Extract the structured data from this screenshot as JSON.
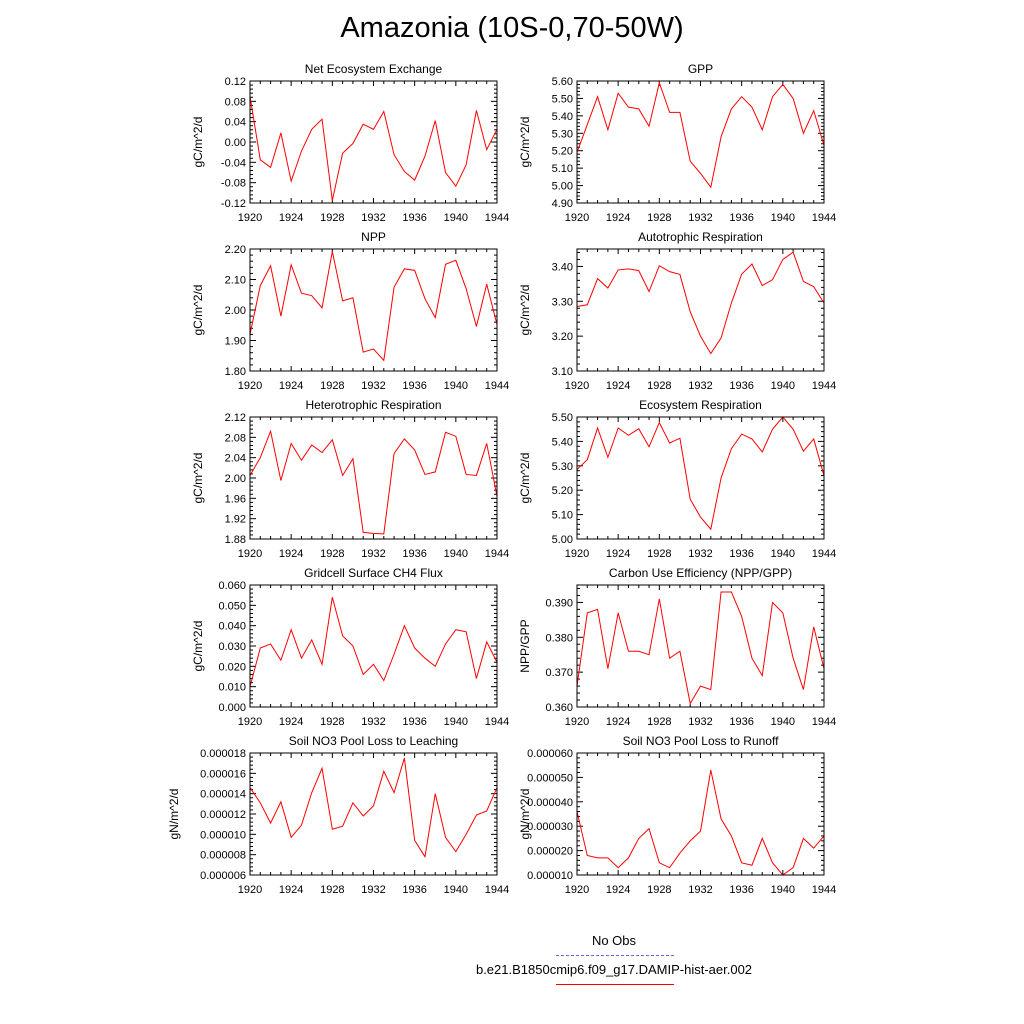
{
  "figure": {
    "title": "Amazonia (10S-0,70-50W)",
    "legend": [
      {
        "label": "No Obs",
        "color": "#6666ff",
        "style": "dashed"
      },
      {
        "label": "b.e21.B1850cmip6.f09_g17.DAMIP-hist-aer.002",
        "color": "#ff0000",
        "style": "solid"
      }
    ],
    "series_color": "#ff0000"
  },
  "chart_data": [
    {
      "type": "line",
      "title": "Net Ecosystem Exchange",
      "ylabel": "gC/m^2/d",
      "xlim": [
        1920,
        1944
      ],
      "ylim": [
        -0.12,
        0.12
      ],
      "xticks": [
        "1920",
        "1924",
        "1928",
        "1932",
        "1936",
        "1940",
        "1944"
      ],
      "yticks": [
        "-0.12",
        "-0.08",
        "-0.04",
        "0.00",
        "0.04",
        "0.08",
        "0.12"
      ],
      "series": [
        {
          "x": [
            1920,
            1921,
            1922,
            1923,
            1924,
            1925,
            1926,
            1927,
            1928,
            1929,
            1930,
            1931,
            1932,
            1933,
            1934,
            1935,
            1936,
            1937,
            1938,
            1939,
            1940,
            1941,
            1942,
            1943,
            1944
          ],
          "values": [
            0.09,
            -0.035,
            -0.05,
            0.018,
            -0.077,
            -0.018,
            0.025,
            0.045,
            -0.115,
            -0.022,
            -0.003,
            0.035,
            0.025,
            0.06,
            -0.025,
            -0.058,
            -0.075,
            -0.028,
            0.042,
            -0.06,
            -0.087,
            -0.045,
            0.062,
            -0.015,
            0.025
          ]
        }
      ]
    },
    {
      "type": "line",
      "title": "GPP",
      "ylabel": "gC/m^2/d",
      "xlim": [
        1920,
        1944
      ],
      "ylim": [
        4.9,
        5.6
      ],
      "xticks": [
        "1920",
        "1924",
        "1928",
        "1932",
        "1936",
        "1940",
        "1944"
      ],
      "yticks": [
        "4.90",
        "5.00",
        "5.10",
        "5.20",
        "5.30",
        "5.40",
        "5.50",
        "5.60"
      ],
      "series": [
        {
          "x": [
            1920,
            1921,
            1922,
            1923,
            1924,
            1925,
            1926,
            1927,
            1928,
            1929,
            1930,
            1931,
            1932,
            1933,
            1934,
            1935,
            1936,
            1937,
            1938,
            1939,
            1940,
            1941,
            1942,
            1943,
            1944
          ],
          "values": [
            5.19,
            5.35,
            5.51,
            5.32,
            5.53,
            5.45,
            5.44,
            5.34,
            5.59,
            5.42,
            5.42,
            5.14,
            5.07,
            4.99,
            5.28,
            5.44,
            5.51,
            5.45,
            5.32,
            5.51,
            5.58,
            5.5,
            5.3,
            5.43,
            5.23
          ]
        }
      ]
    },
    {
      "type": "line",
      "title": "NPP",
      "ylabel": "gC/m^2/d",
      "xlim": [
        1920,
        1944
      ],
      "ylim": [
        1.8,
        2.2
      ],
      "xticks": [
        "1920",
        "1924",
        "1928",
        "1932",
        "1936",
        "1940",
        "1944"
      ],
      "yticks": [
        "1.80",
        "1.90",
        "2.00",
        "2.10",
        "2.20"
      ],
      "series": [
        {
          "x": [
            1920,
            1921,
            1922,
            1923,
            1924,
            1925,
            1926,
            1927,
            1928,
            1929,
            1930,
            1931,
            1932,
            1933,
            1934,
            1935,
            1936,
            1937,
            1938,
            1939,
            1940,
            1941,
            1942,
            1943,
            1944
          ],
          "values": [
            1.92,
            2.08,
            2.145,
            1.98,
            2.148,
            2.055,
            2.047,
            2.007,
            2.192,
            2.03,
            2.04,
            1.862,
            1.872,
            1.835,
            2.075,
            2.135,
            2.13,
            2.037,
            1.975,
            2.15,
            2.163,
            2.07,
            1.946,
            2.085,
            1.952
          ]
        }
      ]
    },
    {
      "type": "line",
      "title": "Autotrophic Respiration",
      "ylabel": "gC/m^2/d",
      "xlim": [
        1920,
        1944
      ],
      "ylim": [
        3.1,
        3.45
      ],
      "xticks": [
        "1920",
        "1924",
        "1928",
        "1932",
        "1936",
        "1940",
        "1944"
      ],
      "yticks": [
        "3.10",
        "3.20",
        "3.30",
        "3.40"
      ],
      "series": [
        {
          "x": [
            1920,
            1921,
            1922,
            1923,
            1924,
            1925,
            1926,
            1927,
            1928,
            1929,
            1930,
            1931,
            1932,
            1933,
            1934,
            1935,
            1936,
            1937,
            1938,
            1939,
            1940,
            1941,
            1942,
            1943,
            1944
          ],
          "values": [
            3.285,
            3.29,
            3.365,
            3.338,
            3.39,
            3.393,
            3.388,
            3.328,
            3.402,
            3.385,
            3.377,
            3.27,
            3.2,
            3.15,
            3.195,
            3.295,
            3.378,
            3.407,
            3.345,
            3.362,
            3.42,
            3.441,
            3.357,
            3.342,
            3.295
          ]
        }
      ]
    },
    {
      "type": "line",
      "title": "Heterotrophic Respiration",
      "ylabel": "gC/m^2/d",
      "xlim": [
        1920,
        1944
      ],
      "ylim": [
        1.88,
        2.12
      ],
      "xticks": [
        "1920",
        "1924",
        "1928",
        "1932",
        "1936",
        "1940",
        "1944"
      ],
      "yticks": [
        "1.88",
        "1.92",
        "1.96",
        "2.00",
        "2.04",
        "2.08",
        "2.12"
      ],
      "series": [
        {
          "x": [
            1920,
            1921,
            1922,
            1923,
            1924,
            1925,
            1926,
            1927,
            1928,
            1929,
            1930,
            1931,
            1932,
            1933,
            1934,
            1935,
            1936,
            1937,
            1938,
            1939,
            1940,
            1941,
            1942,
            1943,
            1944
          ],
          "values": [
            2.005,
            2.04,
            2.092,
            1.995,
            2.068,
            2.035,
            2.065,
            2.05,
            2.075,
            2.005,
            2.038,
            1.893,
            1.891,
            1.89,
            2.048,
            2.077,
            2.055,
            2.007,
            2.012,
            2.09,
            2.082,
            2.007,
            2.005,
            2.068,
            1.964
          ]
        }
      ]
    },
    {
      "type": "line",
      "title": "Ecosystem Respiration",
      "ylabel": "gC/m^2/d",
      "xlim": [
        1920,
        1944
      ],
      "ylim": [
        5.0,
        5.5
      ],
      "xticks": [
        "1920",
        "1924",
        "1928",
        "1932",
        "1936",
        "1940",
        "1944"
      ],
      "yticks": [
        "5.00",
        "5.10",
        "5.20",
        "5.30",
        "5.40",
        "5.50"
      ],
      "series": [
        {
          "x": [
            1920,
            1921,
            1922,
            1923,
            1924,
            1925,
            1926,
            1927,
            1928,
            1929,
            1930,
            1931,
            1932,
            1933,
            1934,
            1935,
            1936,
            1937,
            1938,
            1939,
            1940,
            1941,
            1942,
            1943,
            1944
          ],
          "values": [
            5.285,
            5.325,
            5.455,
            5.335,
            5.455,
            5.425,
            5.452,
            5.378,
            5.477,
            5.393,
            5.413,
            5.163,
            5.09,
            5.04,
            5.25,
            5.37,
            5.43,
            5.41,
            5.357,
            5.45,
            5.5,
            5.45,
            5.36,
            5.41,
            5.26
          ]
        }
      ]
    },
    {
      "type": "line",
      "title": "Gridcell Surface CH4 Flux",
      "ylabel": "gC/m^2/d",
      "xlim": [
        1920,
        1944
      ],
      "ylim": [
        0.0,
        0.06
      ],
      "xticks": [
        "1920",
        "1924",
        "1928",
        "1932",
        "1936",
        "1940",
        "1944"
      ],
      "yticks": [
        "0.000",
        "0.010",
        "0.020",
        "0.030",
        "0.040",
        "0.050",
        "0.060"
      ],
      "series": [
        {
          "x": [
            1920,
            1921,
            1922,
            1923,
            1924,
            1925,
            1926,
            1927,
            1928,
            1929,
            1930,
            1931,
            1932,
            1933,
            1934,
            1935,
            1936,
            1937,
            1938,
            1939,
            1940,
            1941,
            1942,
            1943,
            1944
          ],
          "values": [
            0.01,
            0.029,
            0.031,
            0.023,
            0.038,
            0.024,
            0.033,
            0.021,
            0.054,
            0.035,
            0.03,
            0.016,
            0.021,
            0.013,
            0.026,
            0.04,
            0.029,
            0.024,
            0.02,
            0.031,
            0.038,
            0.037,
            0.014,
            0.032,
            0.022
          ]
        }
      ]
    },
    {
      "type": "line",
      "title": "Carbon Use Efficiency (NPP/GPP)",
      "ylabel": "NPP/GPP",
      "xlim": [
        1920,
        1944
      ],
      "ylim": [
        0.36,
        0.395
      ],
      "xticks": [
        "1920",
        "1924",
        "1928",
        "1932",
        "1936",
        "1940",
        "1944"
      ],
      "yticks": [
        "0.360",
        "0.370",
        "0.380",
        "0.390"
      ],
      "series": [
        {
          "x": [
            1920,
            1921,
            1922,
            1923,
            1924,
            1925,
            1926,
            1927,
            1928,
            1929,
            1930,
            1931,
            1932,
            1933,
            1934,
            1935,
            1936,
            1937,
            1938,
            1939,
            1940,
            1941,
            1942,
            1943,
            1944
          ],
          "values": [
            0.366,
            0.387,
            0.388,
            0.371,
            0.387,
            0.376,
            0.376,
            0.375,
            0.391,
            0.374,
            0.376,
            0.361,
            0.366,
            0.365,
            0.393,
            0.393,
            0.386,
            0.374,
            0.369,
            0.39,
            0.387,
            0.374,
            0.365,
            0.383,
            0.371
          ]
        }
      ]
    },
    {
      "type": "line",
      "title": "Soil NO3 Pool Loss to Leaching",
      "ylabel": "gN/m^2/d",
      "xlim": [
        1920,
        1944
      ],
      "ylim": [
        6e-06,
        1.8e-05
      ],
      "xticks": [
        "1920",
        "1924",
        "1928",
        "1932",
        "1936",
        "1940",
        "1944"
      ],
      "yticks": [
        "0.000006",
        "0.000008",
        "0.000010",
        "0.000012",
        "0.000014",
        "0.000016",
        "0.000018"
      ],
      "series": [
        {
          "x": [
            1920,
            1921,
            1922,
            1923,
            1924,
            1925,
            1926,
            1927,
            1928,
            1929,
            1930,
            1931,
            1932,
            1933,
            1934,
            1935,
            1936,
            1937,
            1938,
            1939,
            1940,
            1941,
            1942,
            1943,
            1944
          ],
          "values": [
            1.46e-05,
            1.31e-05,
            1.11e-05,
            1.32e-05,
            9.7e-06,
            1.09e-05,
            1.41e-05,
            1.65e-05,
            1.05e-05,
            1.08e-05,
            1.31e-05,
            1.18e-05,
            1.28e-05,
            1.62e-05,
            1.41e-05,
            1.75e-05,
            9.4e-06,
            7.8e-06,
            1.4e-05,
            9.7e-06,
            8.3e-06,
            1e-05,
            1.19e-05,
            1.23e-05,
            1.46e-05
          ]
        }
      ]
    },
    {
      "type": "line",
      "title": "Soil NO3 Pool Loss to Runoff",
      "ylabel": "gN/m^2/d",
      "xlim": [
        1920,
        1944
      ],
      "ylim": [
        1e-05,
        6e-05
      ],
      "xticks": [
        "1920",
        "1924",
        "1928",
        "1932",
        "1936",
        "1940",
        "1944"
      ],
      "yticks": [
        "0.000010",
        "0.000020",
        "0.000030",
        "0.000040",
        "0.000050",
        "0.000060"
      ],
      "series": [
        {
          "x": [
            1920,
            1921,
            1922,
            1923,
            1924,
            1925,
            1926,
            1927,
            1928,
            1929,
            1930,
            1931,
            1932,
            1933,
            1934,
            1935,
            1936,
            1937,
            1938,
            1939,
            1940,
            1941,
            1942,
            1943,
            1944
          ],
          "values": [
            3.6e-05,
            1.8e-05,
            1.7e-05,
            1.7e-05,
            1.3e-05,
            1.7e-05,
            2.5e-05,
            2.9e-05,
            1.5e-05,
            1.3e-05,
            1.9e-05,
            2.4e-05,
            2.8e-05,
            5.3e-05,
            3.3e-05,
            2.6e-05,
            1.5e-05,
            1.4e-05,
            2.5e-05,
            1.5e-05,
            1e-05,
            1.3e-05,
            2.5e-05,
            2.1e-05,
            2.6e-05
          ]
        }
      ]
    }
  ]
}
